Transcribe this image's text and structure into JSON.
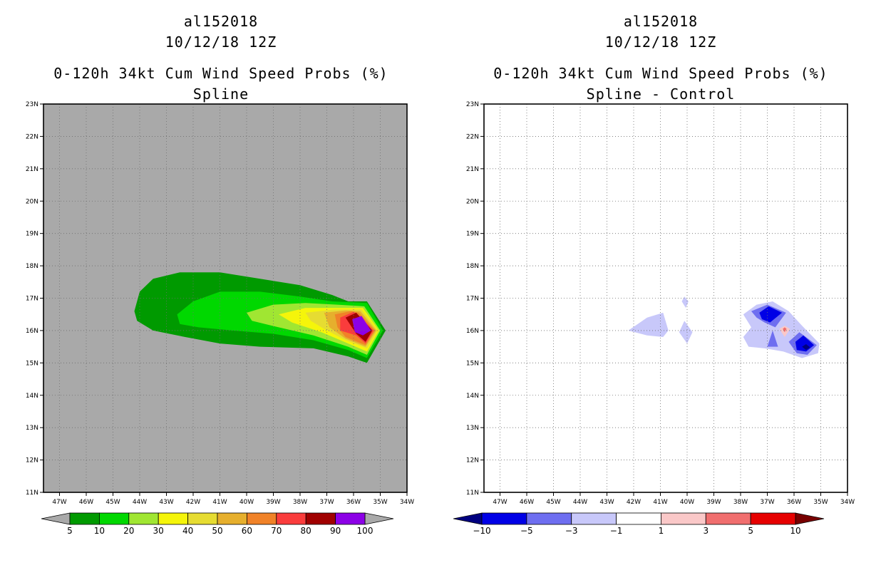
{
  "panels": [
    {
      "storm_id": "al152018",
      "init_time": "10/12/18 12Z",
      "product": "0-120h 34kt Cum Wind Speed Probs (%)",
      "subtitle": "Spline"
    },
    {
      "storm_id": "al152018",
      "init_time": "10/12/18 12Z",
      "product": "0-120h 34kt Cum Wind Speed Probs (%)",
      "subtitle": "Spline - Control"
    }
  ],
  "chart_data": [
    {
      "type": "contour-map",
      "title": "0-120h 34kt Cum Wind Speed Probs (%) Spline",
      "background_color": "#a9a9a9",
      "x_ticks": [
        "47W",
        "46W",
        "45W",
        "44W",
        "43W",
        "42W",
        "41W",
        "40W",
        "39W",
        "38W",
        "37W",
        "36W",
        "35W",
        "34W"
      ],
      "y_ticks": [
        "23N",
        "22N",
        "21N",
        "20N",
        "19N",
        "18N",
        "17N",
        "16N",
        "15N",
        "14N",
        "13N",
        "12N",
        "11N"
      ],
      "lon_range": [
        -47.6,
        -34.0
      ],
      "lat_range": [
        11,
        23
      ],
      "grid": true,
      "colorbar": {
        "labels": [
          "5",
          "10",
          "20",
          "30",
          "40",
          "50",
          "60",
          "70",
          "80",
          "90",
          "100"
        ],
        "colors": [
          "#009a00",
          "#00d800",
          "#a0e632",
          "#f5f50a",
          "#e6dc32",
          "#e6af2d",
          "#f08228",
          "#fa3c3c",
          "#a00000",
          "#8c00e6"
        ],
        "end_colors": [
          "#a9a9a9",
          "#a9a9a9"
        ]
      },
      "contours": [
        {
          "level": 5,
          "color": "#009a00",
          "points": [
            [
              -44.2,
              16.6
            ],
            [
              -44.0,
              17.2
            ],
            [
              -43.5,
              17.6
            ],
            [
              -42.5,
              17.8
            ],
            [
              -41.0,
              17.8
            ],
            [
              -39.5,
              17.6
            ],
            [
              -38.0,
              17.4
            ],
            [
              -36.8,
              17.1
            ],
            [
              -36.2,
              16.9
            ],
            [
              -35.5,
              16.9
            ],
            [
              -34.8,
              16.0
            ],
            [
              -35.5,
              15.0
            ],
            [
              -36.2,
              15.2
            ],
            [
              -37.5,
              15.45
            ],
            [
              -39.5,
              15.5
            ],
            [
              -41.0,
              15.6
            ],
            [
              -42.3,
              15.8
            ],
            [
              -43.5,
              16.0
            ],
            [
              -44.1,
              16.3
            ]
          ]
        },
        {
          "level": 10,
          "color": "#00d800",
          "points": [
            [
              -42.6,
              16.5
            ],
            [
              -42.0,
              16.9
            ],
            [
              -41.0,
              17.2
            ],
            [
              -39.5,
              17.2
            ],
            [
              -38.0,
              17.05
            ],
            [
              -36.8,
              16.9
            ],
            [
              -35.5,
              16.85
            ],
            [
              -34.9,
              16.0
            ],
            [
              -35.5,
              15.15
            ],
            [
              -36.2,
              15.4
            ],
            [
              -37.5,
              15.7
            ],
            [
              -39.0,
              15.9
            ],
            [
              -40.5,
              16.0
            ],
            [
              -41.8,
              16.1
            ],
            [
              -42.5,
              16.2
            ]
          ]
        },
        {
          "level": 20,
          "color": "#a0e632",
          "points": [
            [
              -40.0,
              16.55
            ],
            [
              -39.0,
              16.8
            ],
            [
              -37.8,
              16.85
            ],
            [
              -36.6,
              16.8
            ],
            [
              -35.6,
              16.75
            ],
            [
              -35.0,
              16.0
            ],
            [
              -35.5,
              15.25
            ],
            [
              -36.2,
              15.5
            ],
            [
              -37.5,
              15.85
            ],
            [
              -38.8,
              16.1
            ],
            [
              -39.8,
              16.3
            ]
          ]
        },
        {
          "level": 30,
          "color": "#f5f50a",
          "points": [
            [
              -38.8,
              16.5
            ],
            [
              -37.8,
              16.7
            ],
            [
              -36.6,
              16.7
            ],
            [
              -35.65,
              16.7
            ],
            [
              -35.05,
              16.0
            ],
            [
              -35.5,
              15.35
            ],
            [
              -36.2,
              15.6
            ],
            [
              -37.2,
              15.95
            ],
            [
              -38.3,
              16.25
            ]
          ]
        },
        {
          "level": 40,
          "color": "#e6dc32",
          "points": [
            [
              -37.8,
              16.55
            ],
            [
              -36.7,
              16.65
            ],
            [
              -35.7,
              16.65
            ],
            [
              -35.1,
              16.0
            ],
            [
              -35.5,
              15.45
            ],
            [
              -36.3,
              15.7
            ],
            [
              -37.1,
              16.05
            ],
            [
              -37.6,
              16.3
            ]
          ]
        },
        {
          "level": 50,
          "color": "#e6af2d",
          "points": [
            [
              -37.1,
              16.55
            ],
            [
              -36.3,
              16.62
            ],
            [
              -35.75,
              16.6
            ],
            [
              -35.15,
              16.0
            ],
            [
              -35.55,
              15.5
            ],
            [
              -36.3,
              15.75
            ],
            [
              -36.9,
              16.1
            ]
          ]
        },
        {
          "level": 60,
          "color": "#f08228",
          "points": [
            [
              -36.7,
              16.5
            ],
            [
              -36.1,
              16.6
            ],
            [
              -35.8,
              16.55
            ],
            [
              -35.2,
              16.0
            ],
            [
              -35.55,
              15.55
            ],
            [
              -36.3,
              15.8
            ],
            [
              -36.6,
              16.1
            ]
          ]
        },
        {
          "level": 70,
          "color": "#fa3c3c",
          "points": [
            [
              -36.5,
              16.4
            ],
            [
              -36.0,
              16.58
            ],
            [
              -35.85,
              16.5
            ],
            [
              -35.25,
              16.0
            ],
            [
              -35.55,
              15.6
            ],
            [
              -35.9,
              15.85
            ],
            [
              -36.5,
              16.0
            ]
          ]
        },
        {
          "level": 80,
          "color": "#a00000",
          "points": [
            [
              -36.3,
              16.4
            ],
            [
              -35.9,
              16.55
            ],
            [
              -35.3,
              16.0
            ],
            [
              -35.55,
              15.65
            ],
            [
              -35.9,
              15.9
            ],
            [
              -36.1,
              16.15
            ]
          ]
        },
        {
          "level": 90,
          "color": "#8c00e6",
          "points": [
            [
              -36.05,
              16.35
            ],
            [
              -35.7,
              16.45
            ],
            [
              -35.35,
              16.0
            ],
            [
              -35.65,
              15.85
            ],
            [
              -35.95,
              15.95
            ]
          ]
        }
      ]
    },
    {
      "type": "contour-map",
      "title": "0-120h 34kt Cum Wind Speed Probs (%) Spline - Control",
      "background_color": "#ffffff",
      "x_ticks": [
        "47W",
        "46W",
        "45W",
        "44W",
        "43W",
        "42W",
        "41W",
        "40W",
        "39W",
        "38W",
        "37W",
        "36W",
        "35W",
        "34W"
      ],
      "y_ticks": [
        "23N",
        "22N",
        "21N",
        "20N",
        "19N",
        "18N",
        "17N",
        "16N",
        "15N",
        "14N",
        "13N",
        "12N",
        "11N"
      ],
      "lon_range": [
        -47.6,
        -34.0
      ],
      "lat_range": [
        11,
        23
      ],
      "grid": true,
      "colorbar": {
        "labels": [
          "-10",
          "-5",
          "-3",
          "-1",
          "1",
          "3",
          "5",
          "10"
        ],
        "colors": [
          "#0000e6",
          "#6e6ef0",
          "#c8c8fa",
          "#ffffff",
          "#fac8c8",
          "#f06e6e",
          "#e60000"
        ],
        "end_colors": [
          "#000080",
          "#780000"
        ]
      },
      "contours": [
        {
          "level": -1,
          "color": "#c8c8fa",
          "points": [
            [
              -42.2,
              16.0
            ],
            [
              -41.5,
              16.4
            ],
            [
              -40.9,
              16.55
            ],
            [
              -40.7,
              16.0
            ],
            [
              -40.9,
              15.8
            ],
            [
              -41.5,
              15.85
            ]
          ]
        },
        {
          "level": -1,
          "color": "#c8c8fa",
          "points": [
            [
              -40.1,
              16.3
            ],
            [
              -39.8,
              15.95
            ],
            [
              -40.0,
              15.6
            ],
            [
              -40.3,
              15.95
            ]
          ]
        },
        {
          "level": -1,
          "color": "#c8c8fa",
          "points": [
            [
              -40.1,
              17.05
            ],
            [
              -39.95,
              16.9
            ],
            [
              -40.05,
              16.7
            ],
            [
              -40.2,
              16.9
            ]
          ]
        },
        {
          "level": -1,
          "color": "#c8c8fa",
          "points": [
            [
              -37.9,
              16.5
            ],
            [
              -37.4,
              16.8
            ],
            [
              -36.8,
              16.9
            ],
            [
              -36.2,
              16.6
            ],
            [
              -35.7,
              16.15
            ],
            [
              -35.05,
              15.6
            ],
            [
              -35.1,
              15.3
            ],
            [
              -35.7,
              15.15
            ],
            [
              -36.4,
              15.35
            ],
            [
              -37.1,
              15.45
            ],
            [
              -37.7,
              15.5
            ],
            [
              -37.9,
              15.8
            ],
            [
              -37.6,
              16.1
            ]
          ]
        },
        {
          "level": -3,
          "color": "#6e6ef0",
          "points": [
            [
              -37.6,
              16.6
            ],
            [
              -37.0,
              16.8
            ],
            [
              -36.3,
              16.55
            ],
            [
              -36.7,
              16.1
            ],
            [
              -37.1,
              16.25
            ],
            [
              -37.4,
              16.4
            ]
          ]
        },
        {
          "level": -3,
          "color": "#6e6ef0",
          "points": [
            [
              -36.2,
              15.65
            ],
            [
              -35.8,
              15.95
            ],
            [
              -35.15,
              15.55
            ],
            [
              -35.5,
              15.25
            ],
            [
              -35.9,
              15.3
            ]
          ]
        },
        {
          "level": -3,
          "color": "#6e6ef0",
          "points": [
            [
              -37.0,
              15.5
            ],
            [
              -36.8,
              16.0
            ],
            [
              -36.6,
              15.5
            ]
          ]
        },
        {
          "level": -5,
          "color": "#0000e6",
          "points": [
            [
              -37.3,
              16.55
            ],
            [
              -36.95,
              16.75
            ],
            [
              -36.45,
              16.55
            ],
            [
              -36.9,
              16.25
            ],
            [
              -37.2,
              16.35
            ]
          ]
        },
        {
          "level": -5,
          "color": "#0000e6",
          "points": [
            [
              -35.95,
              15.65
            ],
            [
              -35.65,
              15.85
            ],
            [
              -35.25,
              15.55
            ],
            [
              -35.55,
              15.35
            ],
            [
              -35.9,
              15.4
            ]
          ]
        },
        {
          "level": -10,
          "color": "#000080",
          "points": [
            [
              -35.7,
              15.5
            ],
            [
              -35.55,
              15.58
            ],
            [
              -35.4,
              15.48
            ],
            [
              -35.55,
              15.4
            ]
          ]
        },
        {
          "level": 1,
          "color": "#fac8c8",
          "points": [
            [
              -36.55,
              16.05
            ],
            [
              -36.35,
              16.15
            ],
            [
              -36.15,
              16.05
            ],
            [
              -36.35,
              15.8
            ]
          ]
        },
        {
          "level": 3,
          "color": "#f06e6e",
          "points": [
            [
              -36.42,
              16.05
            ],
            [
              -36.35,
              16.1
            ],
            [
              -36.28,
              16.05
            ],
            [
              -36.35,
              15.95
            ]
          ]
        }
      ]
    }
  ]
}
